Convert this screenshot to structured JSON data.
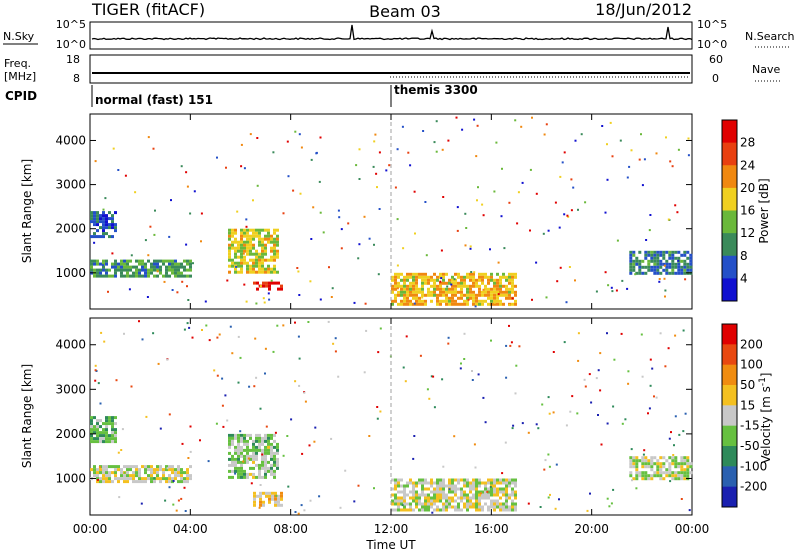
{
  "header": {
    "title": "TIGER (fitACF)",
    "beam": "Beam 03",
    "date": "18/Jun/2012"
  },
  "sky_panel": {
    "left_label": "N.Sky",
    "left_ticks": [
      "10^5",
      "10^0"
    ],
    "right_label": "N.Search",
    "right_ticks": [
      "10^5",
      "10^0"
    ]
  },
  "freq_panel": {
    "left_label_line1": "Freq.",
    "left_label_line2": "[MHz]",
    "left_ticks": [
      "18",
      "8"
    ],
    "right_label": "Nave",
    "right_ticks": [
      "60",
      "0"
    ]
  },
  "cpid": {
    "label": "CPID",
    "programs": [
      {
        "name": "normal (fast) 151",
        "start": "00:00"
      },
      {
        "name": "themis 3300",
        "start": "12:00"
      }
    ]
  },
  "chart_data": [
    {
      "type": "heatmap",
      "name": "power",
      "ylabel": "Slant Range [km]",
      "ylim": [
        180,
        4600
      ],
      "yticks": [
        "1000",
        "2000",
        "3000",
        "4000"
      ],
      "x_ticks": [
        "00:00",
        "04:00",
        "08:00",
        "12:00",
        "16:00",
        "20:00",
        "00:00"
      ],
      "colorbar": {
        "label": "Power [dB]",
        "ticks": [
          "28",
          "24",
          "20",
          "16",
          "12",
          "8",
          "4"
        ],
        "range": [
          0,
          30
        ]
      },
      "echo_regions": [
        {
          "from": "00:00",
          "to": "04:00",
          "range_km": [
            900,
            1300
          ],
          "level_db": 10
        },
        {
          "from": "00:00",
          "to": "01:00",
          "range_km": [
            1800,
            2400
          ],
          "level_db": 6
        },
        {
          "from": "05:30",
          "to": "07:30",
          "range_km": [
            1000,
            2000
          ],
          "level_db": 16
        },
        {
          "from": "06:30",
          "to": "07:40",
          "range_km": [
            600,
            800
          ],
          "level_db": 28
        },
        {
          "from": "12:00",
          "to": "17:00",
          "range_km": [
            300,
            1000
          ],
          "level_db": 18
        },
        {
          "from": "21:30",
          "to": "24:00",
          "range_km": [
            1000,
            1500
          ],
          "level_db": 8
        }
      ]
    },
    {
      "type": "heatmap",
      "name": "velocity",
      "ylabel": "Slant Range [km]",
      "ylim": [
        180,
        4600
      ],
      "yticks": [
        "1000",
        "2000",
        "3000",
        "4000"
      ],
      "x_ticks": [
        "00:00",
        "04:00",
        "08:00",
        "12:00",
        "16:00",
        "20:00",
        "00:00"
      ],
      "xlabel": "Time UT",
      "colorbar": {
        "label": "Velocity [m s^-1]",
        "ticks": [
          "200",
          "100",
          "50",
          "15",
          "-15",
          "-50",
          "-100",
          "-200"
        ],
        "range": [
          -250,
          250
        ]
      },
      "echo_regions": [
        {
          "from": "00:00",
          "to": "04:00",
          "range_km": [
            900,
            1300
          ],
          "velocity": 0
        },
        {
          "from": "00:00",
          "to": "01:00",
          "range_km": [
            1800,
            2400
          ],
          "velocity": -60
        },
        {
          "from": "05:30",
          "to": "07:30",
          "range_km": [
            1000,
            2000
          ],
          "velocity": -30
        },
        {
          "from": "06:30",
          "to": "07:40",
          "range_km": [
            400,
            700
          ],
          "velocity": 40
        },
        {
          "from": "12:00",
          "to": "17:00",
          "range_km": [
            300,
            1000
          ],
          "velocity": 0
        },
        {
          "from": "21:30",
          "to": "24:00",
          "range_km": [
            1000,
            1500
          ],
          "velocity": -10
        }
      ]
    }
  ],
  "colors": {
    "power_scale": [
      "#1010d0",
      "#2450c8",
      "#3a8a5a",
      "#6ab83a",
      "#f0d020",
      "#f08810",
      "#e84010",
      "#e00000"
    ],
    "velocity_scale": [
      "#1a20b0",
      "#2a60b0",
      "#2e8a5a",
      "#66c040",
      "#c8c8c8",
      "#f4c020",
      "#f08c10",
      "#e84810",
      "#e00000"
    ],
    "cpid_divider": "#000000",
    "noon_marker": "#a0a0a0"
  }
}
